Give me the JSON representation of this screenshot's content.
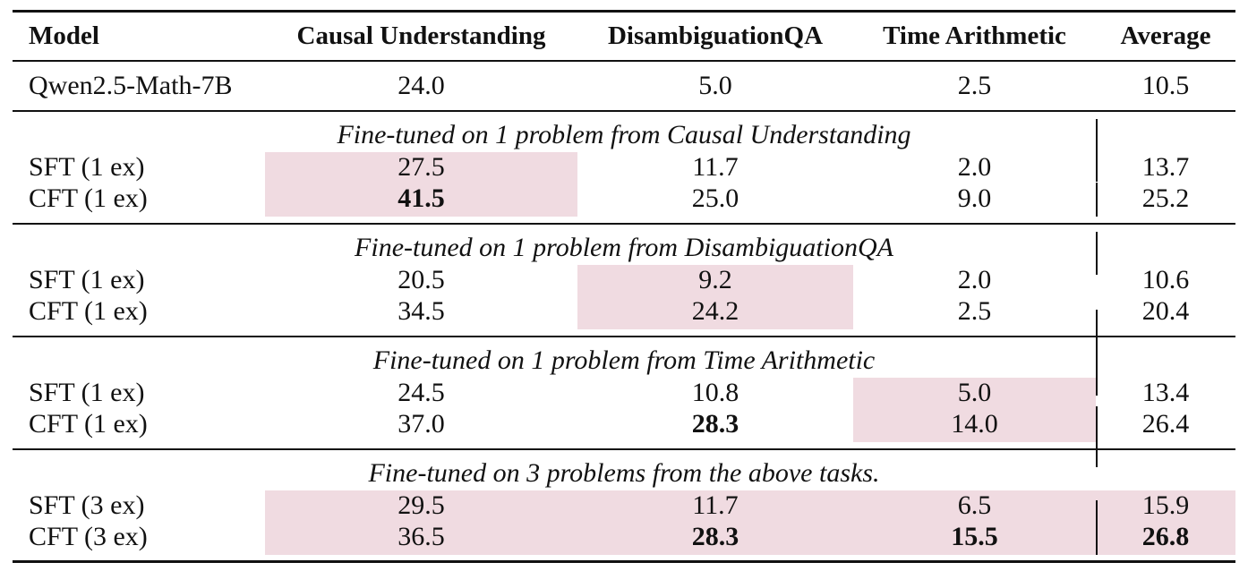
{
  "table": {
    "headers": [
      "Model",
      "Causal Understanding",
      "DisambiguationQA",
      "Time Arithmetic",
      "Average"
    ],
    "baseline": {
      "model": "Qwen2.5-Math-7B",
      "values": [
        "24.0",
        "5.0",
        "2.5",
        "10.5"
      ]
    },
    "groups": [
      {
        "caption": "Fine-tuned on 1 problem from Causal Understanding",
        "rows": [
          {
            "model": "SFT (1 ex)",
            "values": [
              "27.5",
              "11.7",
              "2.0",
              "13.7"
            ]
          },
          {
            "model": "CFT (1 ex)",
            "values": [
              "41.5",
              "25.0",
              "9.0",
              "25.2"
            ]
          }
        ]
      },
      {
        "caption": "Fine-tuned on 1 problem from DisambiguationQA",
        "rows": [
          {
            "model": "SFT (1 ex)",
            "values": [
              "20.5",
              "9.2",
              "2.0",
              "10.6"
            ]
          },
          {
            "model": "CFT (1 ex)",
            "values": [
              "34.5",
              "24.2",
              "2.5",
              "20.4"
            ]
          }
        ]
      },
      {
        "caption": "Fine-tuned on 1 problem from Time Arithmetic",
        "rows": [
          {
            "model": "SFT (1 ex)",
            "values": [
              "24.5",
              "10.8",
              "5.0",
              "13.4"
            ]
          },
          {
            "model": "CFT (1 ex)",
            "values": [
              "37.0",
              "28.3",
              "14.0",
              "26.4"
            ]
          }
        ]
      },
      {
        "caption": "Fine-tuned on 3 problems from the above tasks.",
        "rows": [
          {
            "model": "SFT (3 ex)",
            "values": [
              "29.5",
              "11.7",
              "6.5",
              "15.9"
            ]
          },
          {
            "model": "CFT (3 ex)",
            "values": [
              "36.5",
              "28.3",
              "15.5",
              "26.8"
            ]
          }
        ]
      }
    ],
    "bold_cells": [
      "g0r1c0",
      "g2r1c1",
      "g3r1c1",
      "g3r1c2",
      "g3r1c3"
    ],
    "highlight_color": "#f0dbe1"
  }
}
